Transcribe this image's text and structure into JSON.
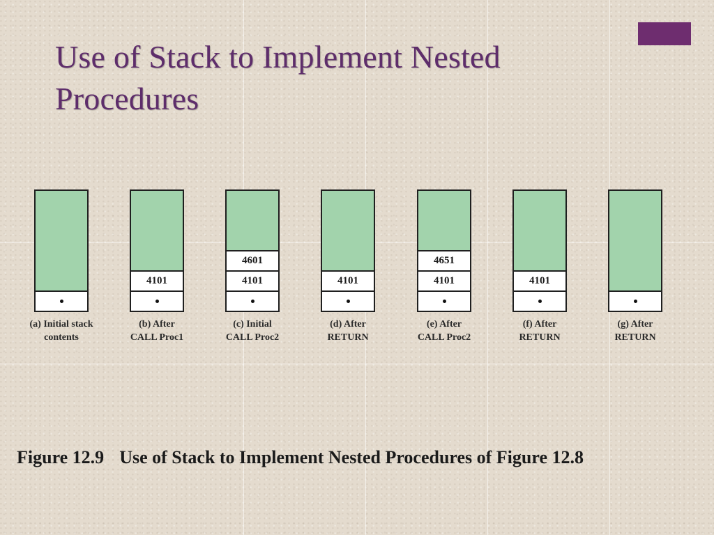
{
  "slide": {
    "title": "Use of Stack to Implement Nested Procedures",
    "colors": {
      "title": "#5e2d6b",
      "accent": "#6e2d6f",
      "stack_fill": "#a2d3ac",
      "cell_fill": "#ffffff"
    }
  },
  "diagram": {
    "stacks": [
      {
        "caption_line1": "(a) Initial stack",
        "caption_line2": "contents",
        "entries": []
      },
      {
        "caption_line1": "(b) After",
        "caption_line2": "CALL Proc1",
        "entries": [
          "4101"
        ]
      },
      {
        "caption_line1": "(c) Initial",
        "caption_line2": "CALL Proc2",
        "entries": [
          "4101",
          "4601"
        ]
      },
      {
        "caption_line1": "(d) After",
        "caption_line2": "RETURN",
        "entries": [
          "4101"
        ]
      },
      {
        "caption_line1": "(e) After",
        "caption_line2": "CALL Proc2",
        "entries": [
          "4101",
          "4651"
        ]
      },
      {
        "caption_line1": "(f) After",
        "caption_line2": "RETURN",
        "entries": [
          "4101"
        ]
      },
      {
        "caption_line1": "(g) After",
        "caption_line2": "RETURN",
        "entries": []
      }
    ]
  },
  "figure": {
    "number": "Figure 12.9",
    "caption": "Use of Stack to Implement Nested Procedures of Figure 12.8"
  }
}
